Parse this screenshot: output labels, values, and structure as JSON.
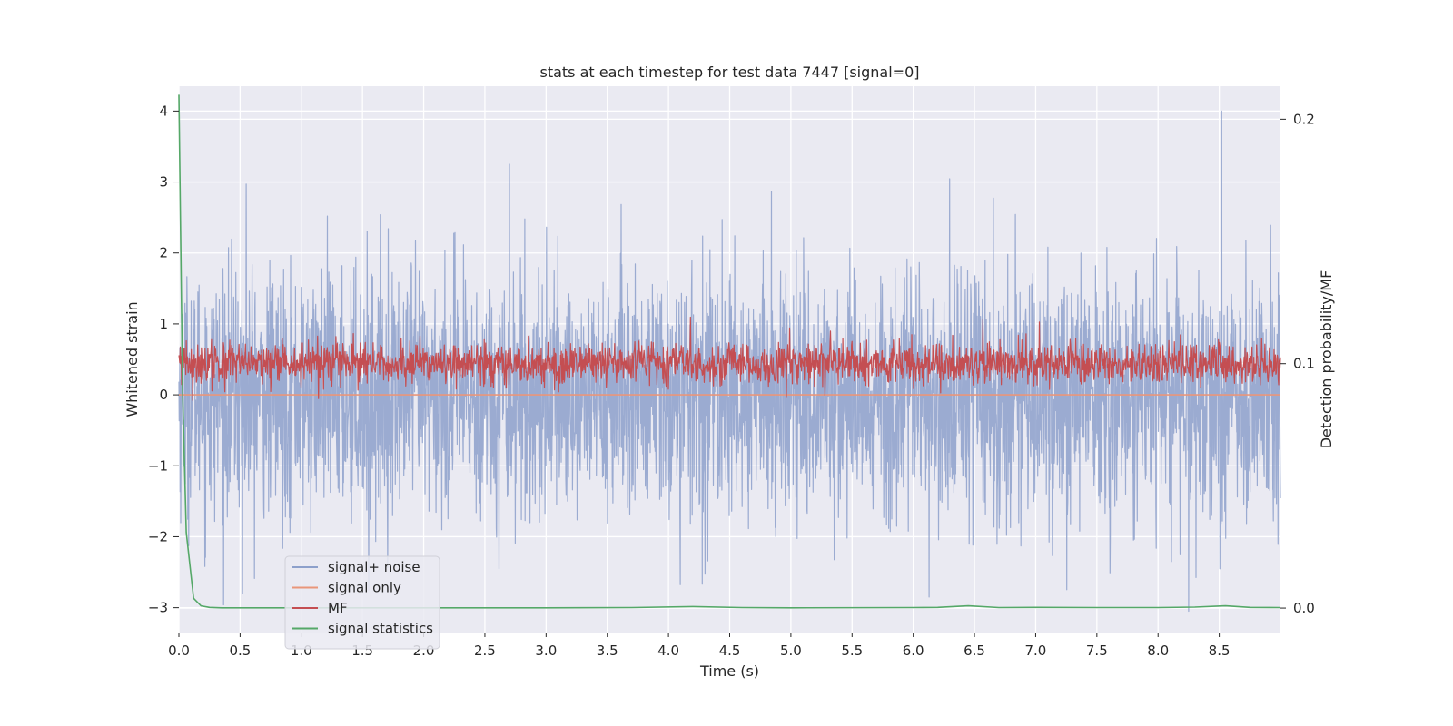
{
  "chart_data": {
    "type": "line",
    "title": "stats at each timestep for test data 7447 [signal=0]",
    "xlabel": "Time (s)",
    "ylabel": "Whitened strain",
    "y2label": "Detection probability/MF",
    "xlim": [
      0,
      9
    ],
    "ylim": [
      -3.35,
      4.35
    ],
    "y2lim": [
      -0.01,
      0.2135
    ],
    "x_ticks": [
      0.0,
      0.5,
      1.0,
      1.5,
      2.0,
      2.5,
      3.0,
      3.5,
      4.0,
      4.5,
      5.0,
      5.5,
      6.0,
      6.5,
      7.0,
      7.5,
      8.0,
      8.5
    ],
    "x_tick_labels": [
      "0.0",
      "0.5",
      "1.0",
      "1.5",
      "2.0",
      "2.5",
      "3.0",
      "3.5",
      "4.0",
      "4.5",
      "5.0",
      "5.5",
      "6.0",
      "6.5",
      "7.0",
      "7.5",
      "8.0",
      "8.5"
    ],
    "y_ticks": [
      4,
      3,
      2,
      1,
      0,
      -1,
      -2,
      -3
    ],
    "y_tick_labels": [
      "4",
      "3",
      "2",
      "1",
      "0",
      "−1",
      "−2",
      "−3"
    ],
    "y2_ticks": [
      0.2,
      0.1,
      0.0
    ],
    "y2_tick_labels": [
      "0.2",
      "0.1",
      "0.0"
    ],
    "grid": true,
    "legend_position": "lower-left",
    "series": [
      {
        "name": "signal+ noise",
        "axis": "left",
        "color": "#8da0cb",
        "kind": "noise",
        "x_range": [
          0,
          9
        ],
        "center": 0.0,
        "typical_range": [
          -2.2,
          2.2
        ],
        "extremes": [
          [
            0.55,
            2.97
          ],
          [
            2.7,
            3.25
          ],
          [
            8.52,
            4.0
          ],
          [
            8.25,
            -3.05
          ],
          [
            6.13,
            -2.85
          ],
          [
            0.52,
            -2.8
          ],
          [
            1.55,
            -2.75
          ]
        ]
      },
      {
        "name": "signal only",
        "axis": "left",
        "color": "#e9967a",
        "x": [
          0,
          9
        ],
        "y": [
          0,
          0
        ]
      },
      {
        "name": "MF",
        "axis": "right",
        "color": "#c44e52",
        "kind": "noise",
        "x_range": [
          0,
          9
        ],
        "center": 0.1,
        "typical_range": [
          0.093,
          0.115
        ],
        "extremes": [
          [
            4.18,
            0.119
          ],
          [
            6.57,
            0.118
          ],
          [
            7.03,
            0.117
          ]
        ]
      },
      {
        "name": "signal statistics",
        "axis": "right",
        "color": "#55a868",
        "x": [
          0,
          0.03,
          0.06,
          0.12,
          0.18,
          0.25,
          0.35,
          0.5,
          1.0,
          2.0,
          3.0,
          3.7,
          4.2,
          4.6,
          5.0,
          6.0,
          6.2,
          6.45,
          6.7,
          7.0,
          7.5,
          8.0,
          8.3,
          8.55,
          8.75,
          9.0
        ],
        "y": [
          0.21,
          0.09,
          0.031,
          0.004,
          0.0009,
          0.0003,
          0.0001,
          0.0001,
          0.0001,
          0.0001,
          0.0001,
          0.0002,
          0.0006,
          0.0002,
          0.0001,
          0.0002,
          0.0003,
          0.0009,
          0.0002,
          0.0003,
          0.0002,
          0.0002,
          0.0004,
          0.0009,
          0.0003,
          0.0002
        ]
      }
    ]
  }
}
